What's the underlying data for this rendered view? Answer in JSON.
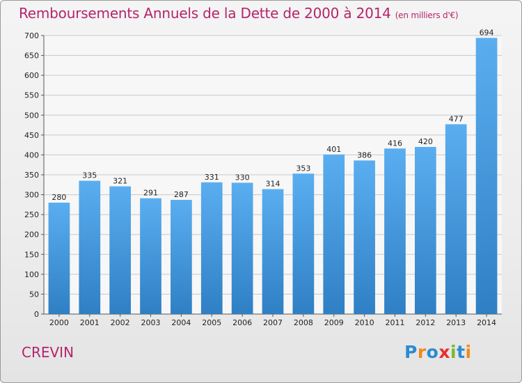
{
  "chart_data": {
    "type": "bar",
    "title": "Remboursements Annuels de la Dette de 2000 à 2014",
    "unit": "(en milliers d'€)",
    "categories": [
      "2000",
      "2001",
      "2002",
      "2003",
      "2004",
      "2005",
      "2006",
      "2007",
      "2008",
      "2009",
      "2010",
      "2011",
      "2012",
      "2013",
      "2014"
    ],
    "values": [
      280,
      335,
      321,
      291,
      287,
      331,
      330,
      314,
      353,
      401,
      386,
      416,
      420,
      477,
      694
    ],
    "ylim": [
      0,
      700
    ],
    "yticks": [
      0,
      50,
      100,
      150,
      200,
      250,
      300,
      350,
      400,
      450,
      500,
      550,
      600,
      650,
      700
    ],
    "grid": true,
    "bar_color": "#4a9ee0"
  },
  "footer": {
    "commune": "CREVIN",
    "logo_text": "Proxiti"
  },
  "colors": {
    "title": "#b5246a",
    "logo": [
      "#2a8bd6",
      "#f08a1c",
      "#2a8bd6",
      "#e6302e",
      "#7ab82e",
      "#2a8bd6",
      "#f08a1c"
    ]
  }
}
